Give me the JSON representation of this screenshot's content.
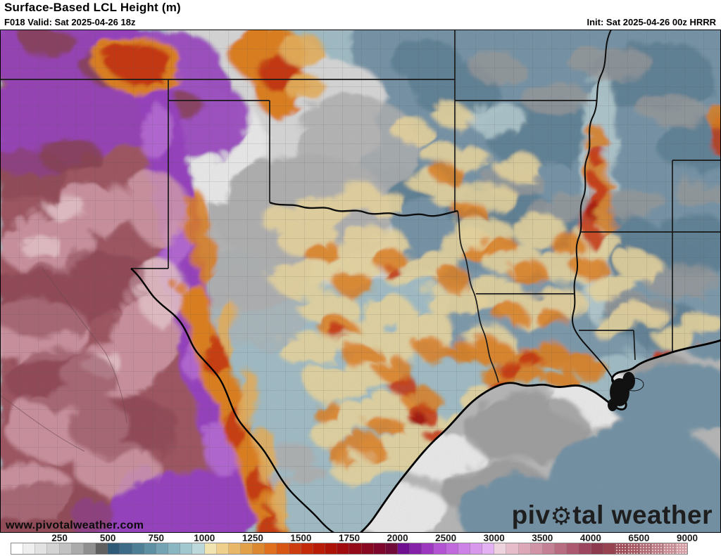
{
  "header": {
    "title": "Surface-Based LCL Height (m)",
    "valid": "F018 Valid: Sat 2025-04-26 18z",
    "init": "Init: Sat 2025-04-26 00z HRRR"
  },
  "watermark": {
    "site_url": "www.pivotalweather.com",
    "logo_pre": "piv",
    "logo_gear": "⚙",
    "logo_post": "tal weather"
  },
  "colorbar": {
    "ticks": [
      "250",
      "500",
      "750",
      "1000",
      "1250",
      "1500",
      "1750",
      "2000",
      "2500",
      "3000",
      "3500",
      "4000",
      "6500",
      "9000"
    ],
    "cells": [
      "#ffffff",
      "#efefef",
      "#e2e2e2",
      "#d3d3d3",
      "#c2c2c2",
      "#ababab",
      "#8f8f8f",
      "#606060",
      "#2e5a78",
      "#3c6c88",
      "#4c7e96",
      "#5e90a4",
      "#74a4b4",
      "#8ab6c2",
      "#a0c8ce",
      "#bcd8da",
      "#f2e4b0",
      "#eecf8c",
      "#e8b768",
      "#e2a048",
      "#dc8830",
      "#e0701e",
      "#d85614",
      "#cc3c0e",
      "#c42a08",
      "#b81c06",
      "#ac1206",
      "#a00c0e",
      "#940a18",
      "#880822",
      "#7c062c",
      "#700a38",
      "#6e1090",
      "#8520a8",
      "#9c38c0",
      "#b254d4",
      "#c06ade",
      "#cc82e6",
      "#d898ec",
      "#e4b2f2",
      "#eed2de",
      "#e6bcca",
      "#dca8b8",
      "#d094a6",
      "#c48094",
      "#b86c82",
      "#ac5870",
      "#9c4660",
      "#8e3a4e",
      "#964250",
      "#9e4a56",
      "#a65660",
      "#b06a74",
      "#bc7a84",
      "#c88c94",
      "#d49ea6"
    ],
    "stipple_from_index": 50
  },
  "map": {
    "palette": {
      "blue-base": "#a6c2cc",
      "blue-steel": "#7595a9",
      "blue-dark": "#54788e",
      "blue-pale": "#c2d8dc",
      "gray-cloud": "#dedede",
      "gray-light": "#f2f2f2",
      "gray-mid": "#b5b5b5",
      "gray-patch": "#9d9d9d",
      "gulf-gray": "#bcbcbc",
      "maroon": "#a35663",
      "maroon-dark": "#8a3f4e",
      "pink": "#dda4b2",
      "pink-pale": "#ecc6ce",
      "purple": "#9b40c5",
      "purple-light": "#bf72dd",
      "orange": "#e5821f",
      "orange-light": "#edb45c",
      "yellow": "#f0dca2",
      "red": "#cd340d",
      "red-dark": "#a81208",
      "border": "#1a1a1a",
      "water-line": "#000000"
    }
  }
}
